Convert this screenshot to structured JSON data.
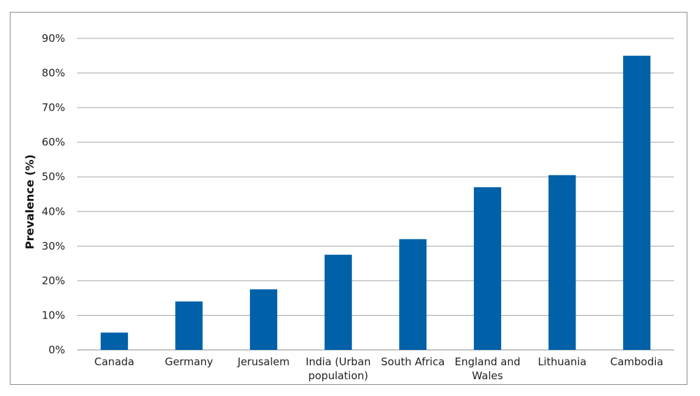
{
  "chart_data": {
    "type": "bar",
    "title": "",
    "xlabel": "",
    "ylabel": "Prevalence (%)",
    "ylim": [
      0,
      90
    ],
    "y_ticks": [
      "0%",
      "10%",
      "20%",
      "30%",
      "40%",
      "50%",
      "60%",
      "70%",
      "80%",
      "90%"
    ],
    "grid": true,
    "bar_color": "#0060a8",
    "categories": [
      [
        "Canada"
      ],
      [
        "Germany"
      ],
      [
        "Jerusalem"
      ],
      [
        "India (Urban",
        "population)"
      ],
      [
        "South Africa"
      ],
      [
        "England and",
        "Wales"
      ],
      [
        "Lithuania"
      ],
      [
        "Cambodia"
      ]
    ],
    "values": [
      5,
      14,
      17.5,
      27.5,
      32,
      47,
      50.5,
      85
    ]
  }
}
